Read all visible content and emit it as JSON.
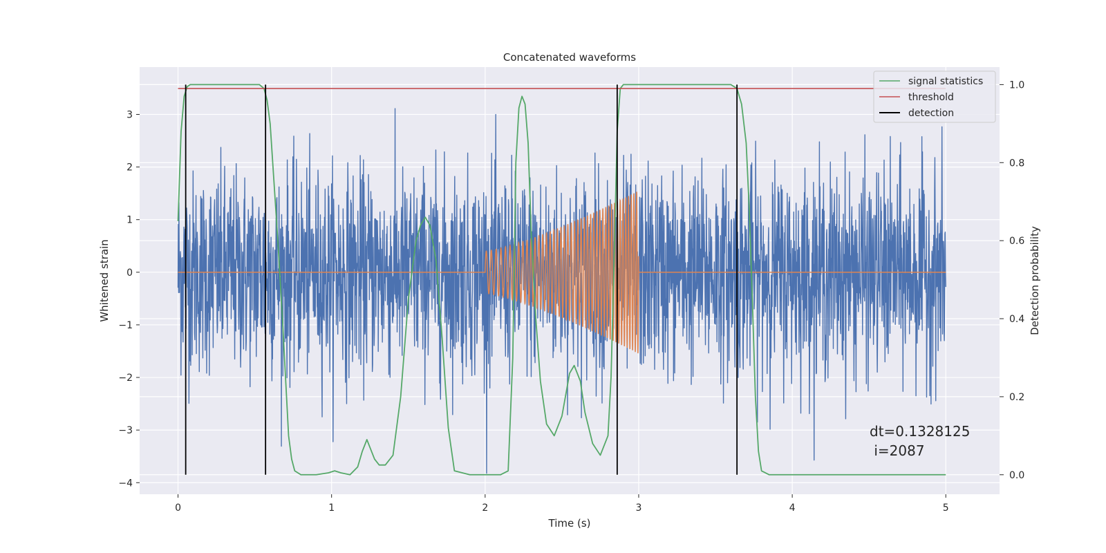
{
  "chart_data": {
    "type": "line",
    "title": "Concatenated waveforms",
    "xlabel": "Time (s)",
    "ylabel": "Whitened strain",
    "y2label": "Detection probability",
    "xlim": [
      -0.25,
      5.35
    ],
    "ylim": [
      -4.22,
      3.9
    ],
    "y2lim": [
      -0.05,
      1.045
    ],
    "grid": true,
    "legend_position": "top-right",
    "x_ticks": [
      0,
      1,
      2,
      3,
      4,
      5
    ],
    "x_tick_labels": [
      "0",
      "1",
      "2",
      "3",
      "4",
      "5"
    ],
    "y_ticks": [
      -4,
      -3,
      -2,
      -1,
      0,
      1,
      2,
      3
    ],
    "y_tick_labels": [
      "−4",
      "−3",
      "−2",
      "−1",
      "0",
      "1",
      "2",
      "3"
    ],
    "y2_ticks": [
      0.0,
      0.2,
      0.4,
      0.6,
      0.8,
      1.0
    ],
    "y2_tick_labels": [
      "0.0",
      "0.2",
      "0.4",
      "0.6",
      "0.8",
      "1.0"
    ],
    "annotation": {
      "line1": "dt=0.1328125",
      "line2": " i=2087"
    },
    "noise_series": {
      "name": "",
      "color": "#4c72b0",
      "x_range": [
        0,
        5
      ],
      "typical_range": [
        -2.5,
        2.4
      ],
      "extremes": [
        -4.0,
        3.4
      ]
    },
    "injected_signal": {
      "name": "",
      "color": "#dd8452",
      "chirp_start": 2.0,
      "chirp_end": 3.0,
      "amp_start": 0.4,
      "amp_end": 1.55,
      "flat_value": 0
    },
    "series": [
      {
        "name": "signal statistics",
        "color": "#55a868",
        "axis": "right",
        "x": [
          0.0,
          0.02,
          0.04,
          0.06,
          0.08,
          0.1,
          0.15,
          0.3,
          0.45,
          0.53,
          0.56,
          0.58,
          0.6,
          0.62,
          0.65,
          0.68,
          0.7,
          0.72,
          0.74,
          0.76,
          0.8,
          0.9,
          0.98,
          1.02,
          1.06,
          1.12,
          1.17,
          1.2,
          1.23,
          1.25,
          1.28,
          1.31,
          1.35,
          1.4,
          1.45,
          1.5,
          1.55,
          1.58,
          1.61,
          1.64,
          1.68,
          1.72,
          1.76,
          1.8,
          1.9,
          2.0,
          2.1,
          2.15,
          2.18,
          2.2,
          2.22,
          2.24,
          2.26,
          2.28,
          2.3,
          2.33,
          2.36,
          2.4,
          2.45,
          2.5,
          2.55,
          2.58,
          2.62,
          2.65,
          2.7,
          2.75,
          2.8,
          2.82,
          2.84,
          2.86,
          2.88,
          2.9,
          3.0,
          3.3,
          3.6,
          3.64,
          3.67,
          3.7,
          3.72,
          3.74,
          3.76,
          3.78,
          3.8,
          3.85,
          4.0,
          5.0
        ],
        "values": [
          0.65,
          0.88,
          0.97,
          0.995,
          1.0,
          1.0,
          1.0,
          1.0,
          1.0,
          1.0,
          0.99,
          0.96,
          0.9,
          0.78,
          0.6,
          0.4,
          0.25,
          0.1,
          0.04,
          0.01,
          0.0,
          0.0,
          0.005,
          0.01,
          0.005,
          0.0,
          0.02,
          0.06,
          0.09,
          0.07,
          0.04,
          0.025,
          0.025,
          0.05,
          0.2,
          0.45,
          0.6,
          0.64,
          0.66,
          0.64,
          0.55,
          0.35,
          0.12,
          0.01,
          0.0,
          0.0,
          0.0,
          0.01,
          0.3,
          0.8,
          0.94,
          0.97,
          0.95,
          0.85,
          0.62,
          0.4,
          0.24,
          0.13,
          0.1,
          0.15,
          0.26,
          0.28,
          0.24,
          0.16,
          0.08,
          0.05,
          0.1,
          0.25,
          0.55,
          0.88,
          0.99,
          1.0,
          1.0,
          1.0,
          1.0,
          0.99,
          0.95,
          0.85,
          0.68,
          0.45,
          0.2,
          0.06,
          0.01,
          0.0,
          0.0,
          0.0
        ]
      },
      {
        "name": "threshold",
        "color": "#c44e52",
        "axis": "right",
        "x": [
          0.0,
          5.0
        ],
        "values": [
          0.99,
          0.99
        ]
      },
      {
        "name": "detection",
        "color": "#000000",
        "axis": "right",
        "x": [
          0.05,
          0.57,
          2.86,
          3.64
        ],
        "values": [
          1.0,
          1.0,
          1.0,
          1.0
        ]
      }
    ]
  }
}
